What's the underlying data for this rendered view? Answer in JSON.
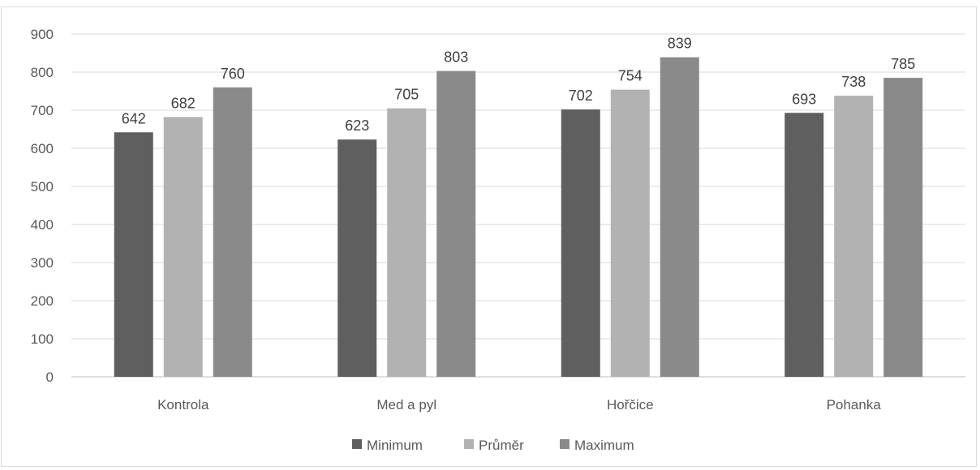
{
  "chart_data": {
    "type": "bar",
    "categories": [
      "Kontrola",
      "Med a pyl",
      "Hořčice",
      "Pohanka"
    ],
    "series": [
      {
        "name": "Minimum",
        "color": "#5f5f5f",
        "values": [
          642,
          623,
          702,
          693
        ]
      },
      {
        "name": "Průměr",
        "color": "#b2b2b2",
        "values": [
          682,
          705,
          754,
          738
        ]
      },
      {
        "name": "Maximum",
        "color": "#8a8a8a",
        "values": [
          760,
          803,
          839,
          785
        ]
      }
    ],
    "ylim": [
      0,
      900
    ],
    "yticks": [
      0,
      100,
      200,
      300,
      400,
      500,
      600,
      700,
      800,
      900
    ],
    "grid": true,
    "legend_position": "bottom",
    "title": "",
    "xlabel": "",
    "ylabel": ""
  }
}
